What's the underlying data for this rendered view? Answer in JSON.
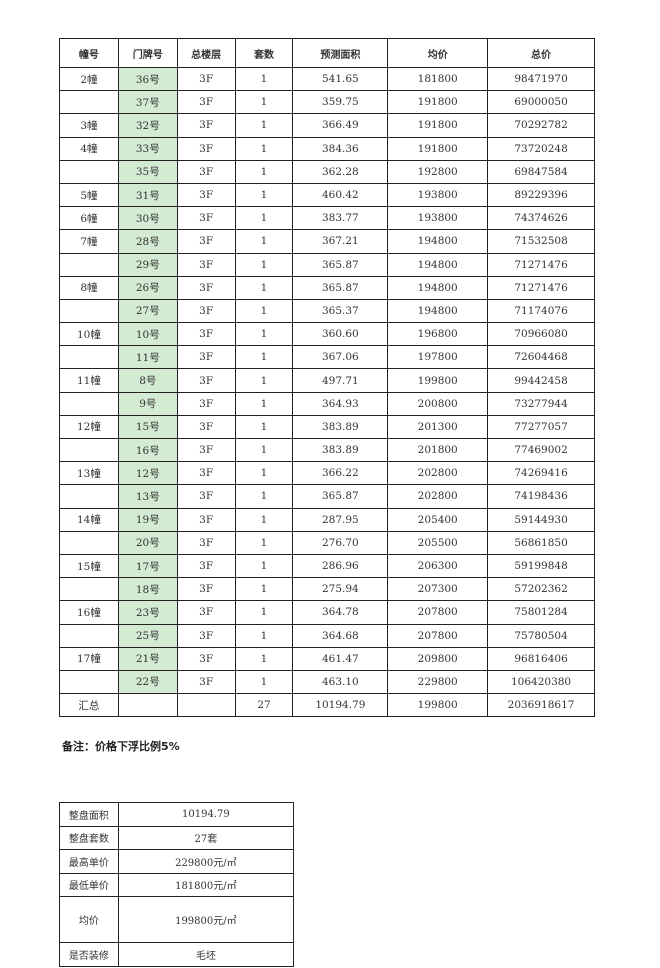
{
  "main_table": {
    "headers": [
      "幢号",
      "门牌号",
      "总楼层",
      "套数",
      "预测面积",
      "均价",
      "总价"
    ],
    "rows": [
      [
        "2幢",
        "36号",
        "3F",
        "1",
        "541.65",
        "181800",
        "98471970"
      ],
      [
        "",
        "37号",
        "3F",
        "1",
        "359.75",
        "191800",
        "69000050"
      ],
      [
        "3幢",
        "32号",
        "3F",
        "1",
        "366.49",
        "191800",
        "70292782"
      ],
      [
        "4幢",
        "33号",
        "3F",
        "1",
        "384.36",
        "191800",
        "73720248"
      ],
      [
        "",
        "35号",
        "3F",
        "1",
        "362.28",
        "192800",
        "69847584"
      ],
      [
        "5幢",
        "31号",
        "3F",
        "1",
        "460.42",
        "193800",
        "89229396"
      ],
      [
        "6幢",
        "30号",
        "3F",
        "1",
        "383.77",
        "193800",
        "74374626"
      ],
      [
        "7幢",
        "28号",
        "3F",
        "1",
        "367.21",
        "194800",
        "71532508"
      ],
      [
        "",
        "29号",
        "3F",
        "1",
        "365.87",
        "194800",
        "71271476"
      ],
      [
        "8幢",
        "26号",
        "3F",
        "1",
        "365.87",
        "194800",
        "71271476"
      ],
      [
        "",
        "27号",
        "3F",
        "1",
        "365.37",
        "194800",
        "71174076"
      ],
      [
        "10幢",
        "10号",
        "3F",
        "1",
        "360.60",
        "196800",
        "70966080"
      ],
      [
        "",
        "11号",
        "3F",
        "1",
        "367.06",
        "197800",
        "72604468"
      ],
      [
        "11幢",
        "8号",
        "3F",
        "1",
        "497.71",
        "199800",
        "99442458"
      ],
      [
        "",
        "9号",
        "3F",
        "1",
        "364.93",
        "200800",
        "73277944"
      ],
      [
        "12幢",
        "15号",
        "3F",
        "1",
        "383.89",
        "201300",
        "77277057"
      ],
      [
        "",
        "16号",
        "3F",
        "1",
        "383.89",
        "201800",
        "77469002"
      ],
      [
        "13幢",
        "12号",
        "3F",
        "1",
        "366.22",
        "202800",
        "74269416"
      ],
      [
        "",
        "13号",
        "3F",
        "1",
        "365.87",
        "202800",
        "74198436"
      ],
      [
        "14幢",
        "19号",
        "3F",
        "1",
        "287.95",
        "205400",
        "59144930"
      ],
      [
        "",
        "20号",
        "3F",
        "1",
        "276.70",
        "205500",
        "56861850"
      ],
      [
        "15幢",
        "17号",
        "3F",
        "1",
        "286.96",
        "206300",
        "59199848"
      ],
      [
        "",
        "18号",
        "3F",
        "1",
        "275.94",
        "207300",
        "57202362"
      ],
      [
        "16幢",
        "23号",
        "3F",
        "1",
        "364.78",
        "207800",
        "75801284"
      ],
      [
        "",
        "25号",
        "3F",
        "1",
        "364.68",
        "207800",
        "75780504"
      ],
      [
        "17幢",
        "21号",
        "3F",
        "1",
        "461.47",
        "209800",
        "96816406"
      ],
      [
        "",
        "22号",
        "3F",
        "1",
        "463.10",
        "229800",
        "106420380"
      ]
    ],
    "total": [
      "汇总",
      "",
      "",
      "27",
      "10194.79",
      "199800",
      "2036918617"
    ],
    "door_highlight_color": "#d3ead3"
  },
  "note": "备注：价格下浮比例5%",
  "summary_table": {
    "rows": [
      [
        "整盘面积",
        "10194.79"
      ],
      [
        "整盘套数",
        "27套"
      ],
      [
        "最高单价",
        "229800元/㎡"
      ],
      [
        "最低单价",
        "181800元/㎡"
      ],
      [
        "均价",
        "199800元/㎡"
      ],
      [
        "是否装修",
        "毛坯"
      ]
    ]
  }
}
